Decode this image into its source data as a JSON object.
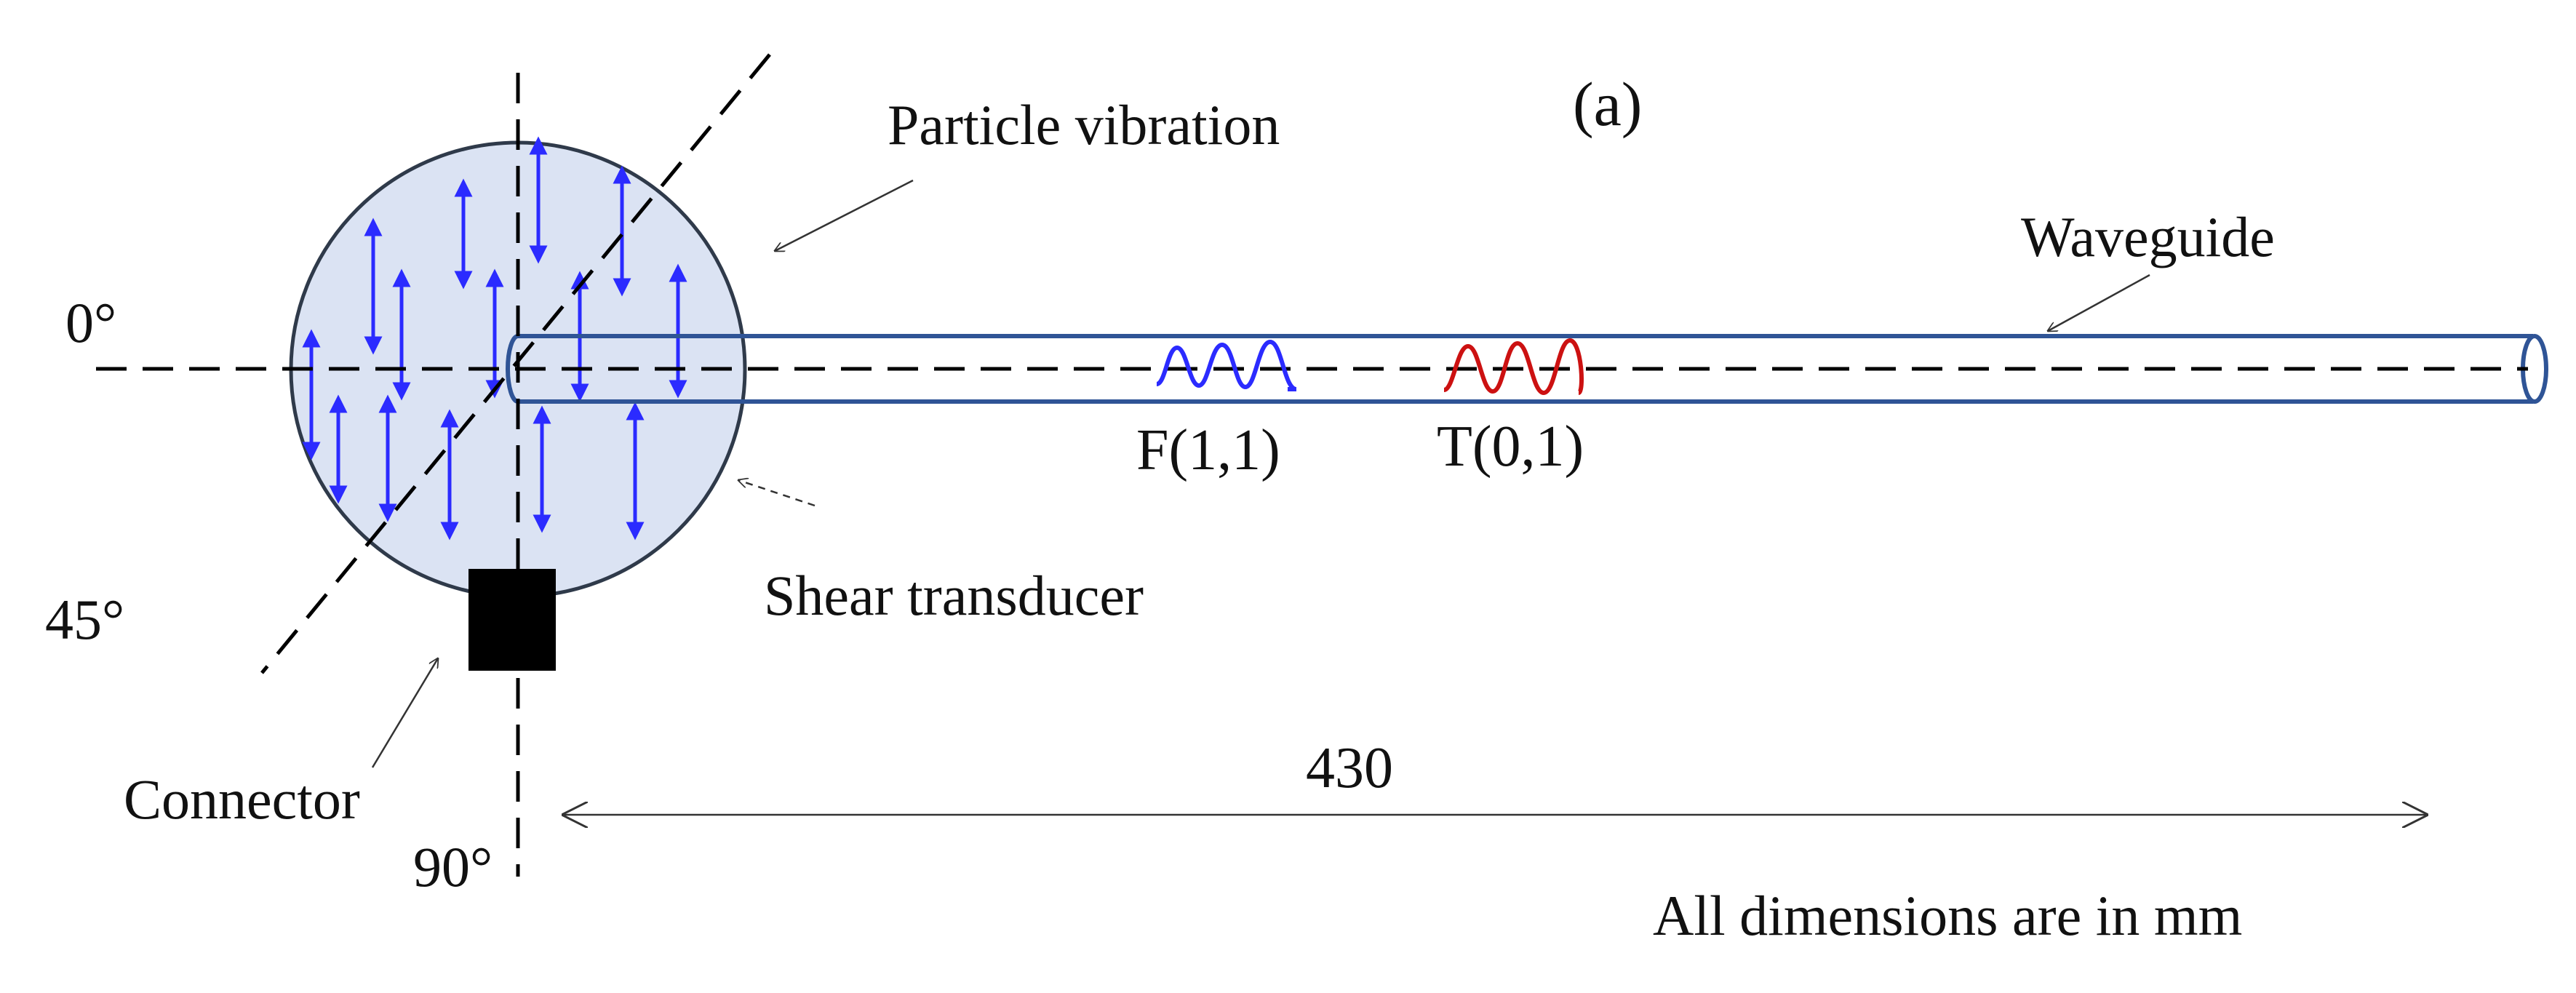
{
  "panel_label": "(a)",
  "angles": {
    "deg0": "0°",
    "deg45": "45°",
    "deg90": "90°"
  },
  "labels": {
    "particle_vibration": "Particle vibration",
    "waveguide": "Waveguide",
    "shear_transducer": "Shear transducer",
    "connector": "Connector"
  },
  "modes": {
    "flexural": "F(1,1)",
    "torsional": "T(0,1)"
  },
  "dimension": {
    "length": "430",
    "note": "All dimensions are in mm"
  },
  "colors": {
    "transducer_fill": "#dbe3f3",
    "outline": "#2f5496",
    "vibration_arrow": "#2b2bff",
    "flexural_wave": "#2b2bff",
    "torsional_wave": "#cc1111",
    "connector": "#000000"
  }
}
